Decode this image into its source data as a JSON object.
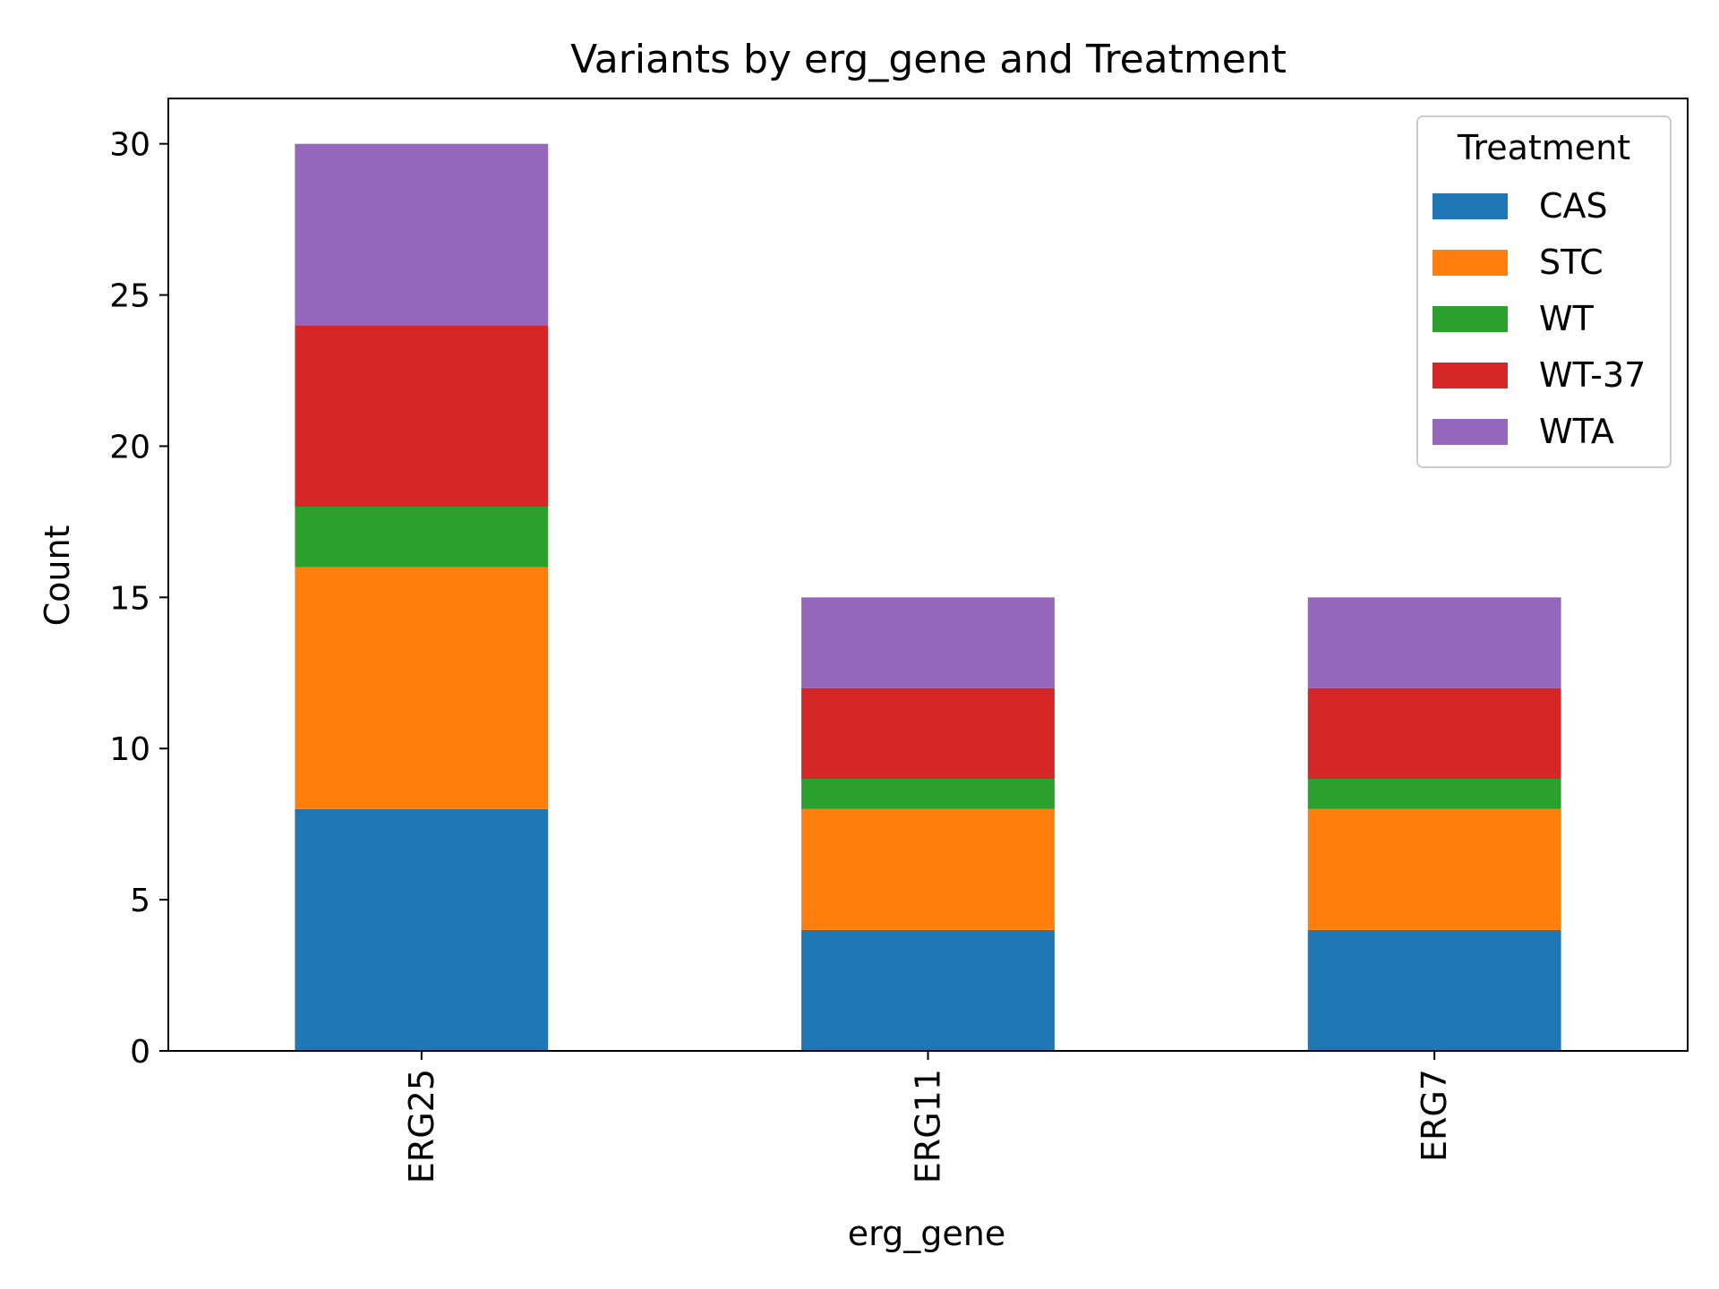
{
  "chart_data": {
    "type": "bar",
    "stacked": true,
    "title": "Variants by erg_gene and Treatment",
    "xlabel": "erg_gene",
    "ylabel": "Count",
    "categories": [
      "ERG25",
      "ERG11",
      "ERG7"
    ],
    "series": [
      {
        "name": "CAS",
        "color": "#1f77b4",
        "values": [
          8,
          4,
          4
        ]
      },
      {
        "name": "STC",
        "color": "#ff7f0e",
        "values": [
          8,
          4,
          4
        ]
      },
      {
        "name": "WT",
        "color": "#2ca02c",
        "values": [
          2,
          1,
          1
        ]
      },
      {
        "name": "WT-37",
        "color": "#d62728",
        "values": [
          6,
          3,
          3
        ]
      },
      {
        "name": "WTA",
        "color": "#9467bd",
        "values": [
          6,
          3,
          3
        ]
      }
    ],
    "ylim": [
      0,
      31.5
    ],
    "yticks": [
      0,
      5,
      10,
      15,
      20,
      25,
      30
    ],
    "grid": false,
    "legend": {
      "title": "Treatment",
      "position": "upper right"
    },
    "xtick_rotation": "vertical"
  }
}
